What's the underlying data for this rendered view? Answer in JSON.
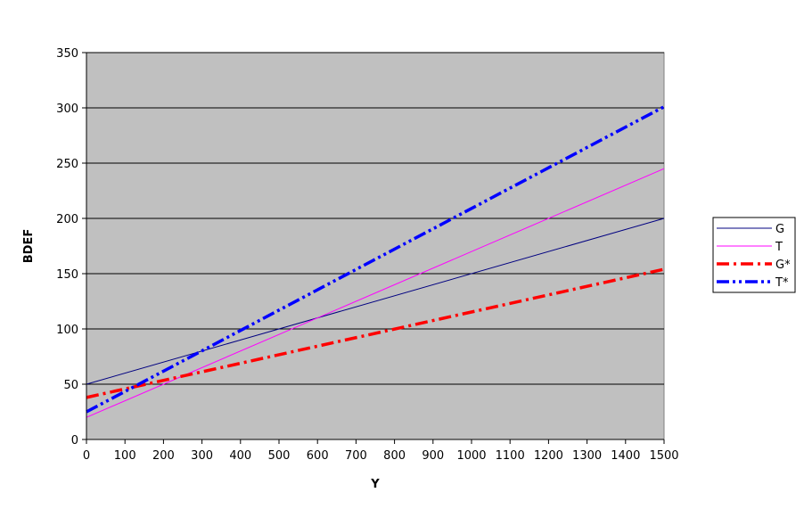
{
  "chart_data": {
    "type": "line",
    "title": "",
    "xlabel": "Y",
    "ylabel": "BDEF",
    "xlim": [
      0,
      1500
    ],
    "ylim": [
      0,
      350
    ],
    "xticks": [
      0,
      100,
      200,
      300,
      400,
      500,
      600,
      700,
      800,
      900,
      1000,
      1100,
      1200,
      1300,
      1400,
      1500
    ],
    "yticks": [
      0,
      50,
      100,
      150,
      200,
      250,
      300,
      350
    ],
    "grid": "horizontal",
    "legend_position": "right",
    "plot_background": "#c0c0c0",
    "series": [
      {
        "name": "G",
        "color": "#000080",
        "style": "solid",
        "x": [
          0,
          1500
        ],
        "y": [
          50,
          200
        ]
      },
      {
        "name": "T",
        "color": "#ff00ff",
        "style": "solid",
        "x": [
          0,
          1500
        ],
        "y": [
          20,
          245
        ]
      },
      {
        "name": "G*",
        "color": "#ff0000",
        "style": "dash-dot",
        "x": [
          0,
          1500
        ],
        "y": [
          38,
          154
        ]
      },
      {
        "name": "T*",
        "color": "#0000ff",
        "style": "dash-dot-dot",
        "x": [
          0,
          1500
        ],
        "y": [
          25,
          301
        ]
      }
    ]
  }
}
